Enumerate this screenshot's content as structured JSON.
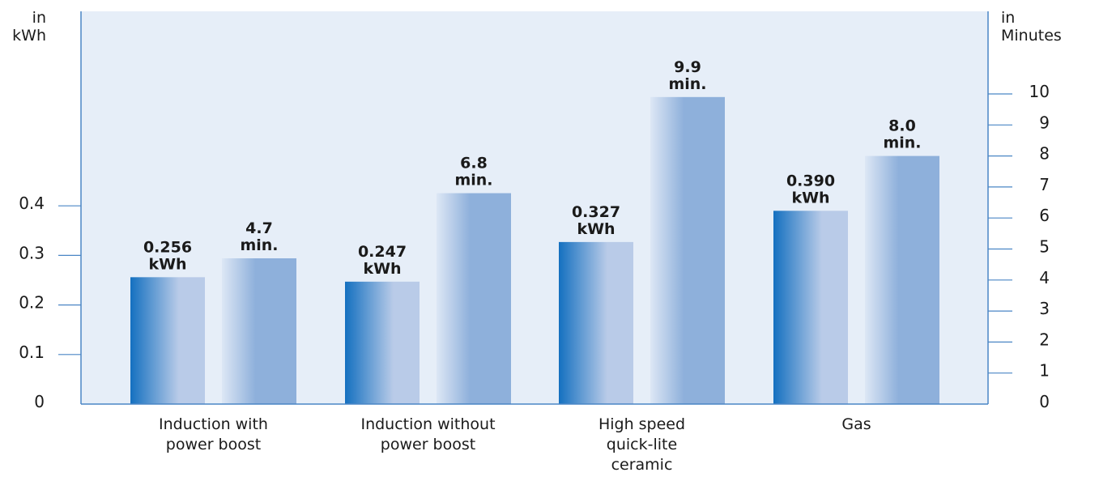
{
  "chart_data": {
    "type": "bar",
    "categories": [
      [
        "Induction with",
        "power boost"
      ],
      [
        "Induction without",
        "power boost"
      ],
      [
        "High speed",
        "quick-lite",
        "ceramic"
      ],
      [
        "Gas"
      ]
    ],
    "series": [
      {
        "axis": "left",
        "values": [
          0.256,
          0.247,
          0.327,
          0.39
        ],
        "value_labels": [
          [
            "0.256",
            "kWh"
          ],
          [
            "0.247",
            "kWh"
          ],
          [
            "0.327",
            "kWh"
          ],
          [
            "0.390",
            "kWh"
          ]
        ]
      },
      {
        "axis": "right",
        "values": [
          4.7,
          6.8,
          9.9,
          8.0
        ],
        "value_labels": [
          [
            "4.7",
            "min."
          ],
          [
            "6.8",
            "min."
          ],
          [
            "9.9",
            "min."
          ],
          [
            "8.0",
            "min."
          ]
        ]
      }
    ],
    "left_axis": {
      "unit_lines": [
        "in",
        "kWh"
      ],
      "ticks": [
        0,
        0.1,
        0.2,
        0.3,
        0.4
      ],
      "tick_labels": [
        "0",
        "0.1",
        "0.2",
        "0.3",
        "0.4"
      ],
      "range": [
        0,
        0.8
      ]
    },
    "right_axis": {
      "unit_lines": [
        "in",
        "Minutes"
      ],
      "ticks": [
        0,
        1,
        2,
        3,
        4,
        5,
        6,
        7,
        8,
        9,
        10
      ],
      "tick_labels": [
        "0",
        "1",
        "2",
        "3",
        "4",
        "5",
        "6",
        "7",
        "8",
        "9",
        "10"
      ],
      "range": [
        0,
        10.2
      ]
    },
    "colors": {
      "plot_background": "#e6eef8",
      "axis": "#4a86c5",
      "bar_kwh_dark": "#1470c0",
      "bar_kwh_light": "#b9cbe8",
      "bar_min_light": "#dde7f5",
      "bar_min_dark": "#8eb0db"
    }
  }
}
